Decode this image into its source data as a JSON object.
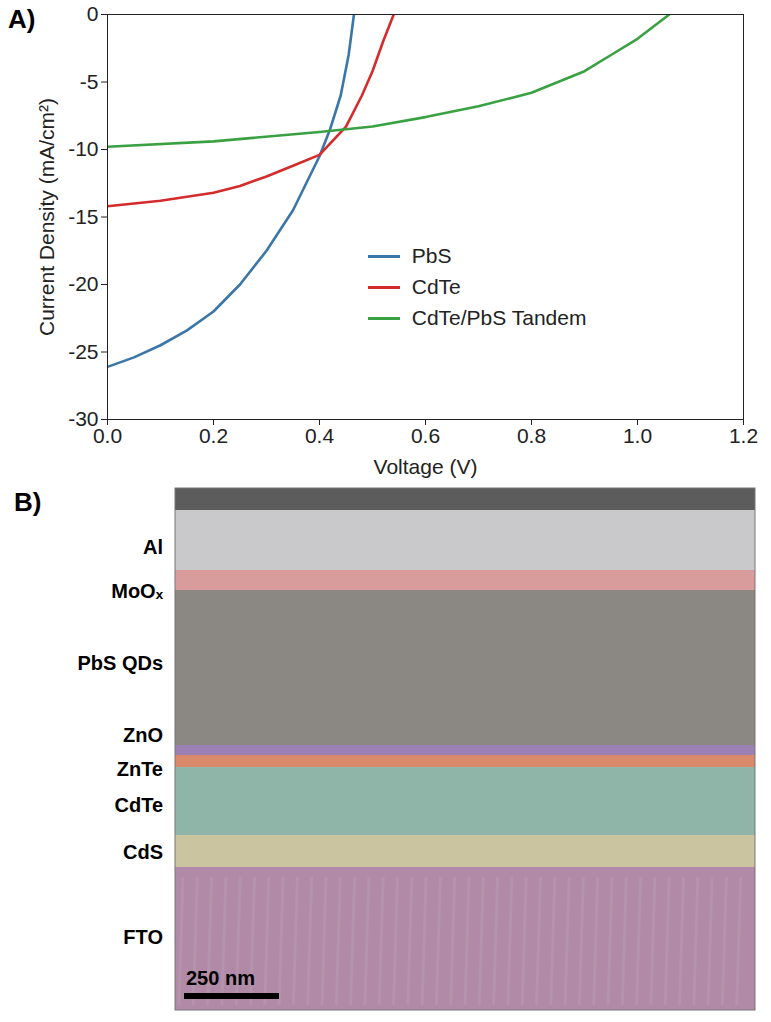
{
  "chart_data": {
    "type": "line",
    "panel_label": "A)",
    "x_label": "Voltage (V)",
    "y_label": "Current Density (mA/cm²)",
    "xlim": [
      0,
      1.2
    ],
    "xticks": [
      {
        "value": 0,
        "label": "0.0"
      },
      0.2,
      0.4,
      0.6,
      0.8,
      {
        "value": 1,
        "label": "1.0"
      },
      1.2
    ],
    "ylim": [
      -30,
      0
    ],
    "yticks": [
      -30,
      -25,
      -20,
      -15,
      -10,
      -5,
      0
    ],
    "grid": false,
    "legend": "bottom",
    "series": [
      {
        "name": "PbS",
        "color": "#3b76a9",
        "x": [
          0,
          0.05,
          0.1,
          0.15,
          0.2,
          0.25,
          0.3,
          0.35,
          0.4,
          0.42,
          0.44,
          0.455,
          0.465
        ],
        "values": [
          -26.1,
          -25.4,
          -24.5,
          -23.4,
          -22.0,
          -20.0,
          -17.5,
          -14.5,
          -10.5,
          -8.5,
          -6.0,
          -3.0,
          0
        ]
      },
      {
        "name": "CdTe",
        "color": "#d42b2b",
        "x": [
          0,
          0.1,
          0.2,
          0.25,
          0.3,
          0.35,
          0.4,
          0.45,
          0.48,
          0.5,
          0.52,
          0.54
        ],
        "values": [
          -14.2,
          -13.8,
          -13.2,
          -12.7,
          -12.0,
          -11.2,
          -10.4,
          -8.3,
          -6.0,
          -4.2,
          -2.0,
          0
        ]
      },
      {
        "name": "CdTe/PbS Tandem",
        "color": "#3aa142",
        "x": [
          0,
          0.2,
          0.4,
          0.5,
          0.6,
          0.7,
          0.8,
          0.9,
          0.95,
          1.0,
          1.05,
          1.06
        ],
        "values": [
          -9.8,
          -9.4,
          -8.7,
          -8.3,
          -7.6,
          -6.8,
          -5.8,
          -4.2,
          -3.0,
          -1.8,
          -0.3,
          0
        ]
      }
    ]
  },
  "micrograph": {
    "panel_label": "B)",
    "scale_bar": "250 nm",
    "layers": [
      {
        "label": "Al",
        "color": "#c9c9cc"
      },
      {
        "label": "MoOₓ",
        "color": "#d99c9c"
      },
      {
        "label": "PbS QDs",
        "color": "#8b8782"
      },
      {
        "label": "ZnO",
        "color": "#9b80b3"
      },
      {
        "label": "ZnTe",
        "color": "#d98a6a"
      },
      {
        "label": "CdTe",
        "color": "#8fb5a8"
      },
      {
        "label": "CdS",
        "color": "#cbc4a0"
      },
      {
        "label": "FTO",
        "color": "#b08aa6"
      }
    ]
  }
}
